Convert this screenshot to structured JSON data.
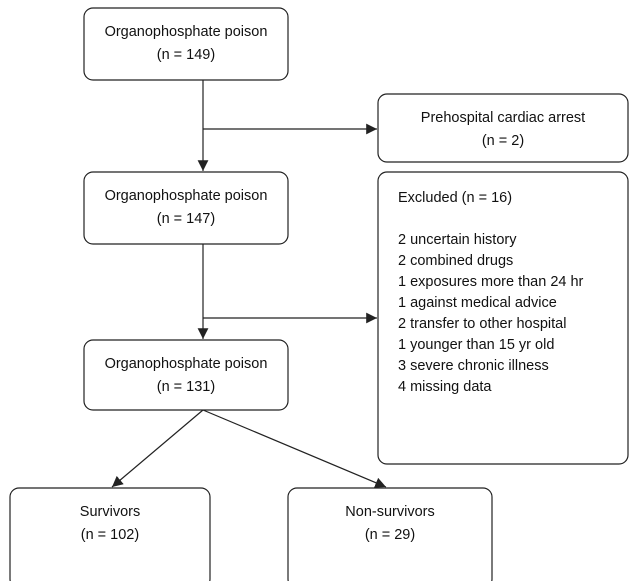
{
  "nodes": [
    {
      "lines": [
        "Organophosphate poison",
        "(n = 149)"
      ]
    },
    {
      "lines": [
        "Prehospital cardiac arrest",
        "(n = 2)"
      ]
    },
    {
      "lines": [
        "Organophosphate poison",
        "(n = 147)"
      ]
    },
    {
      "title": "Excluded (n = 16)",
      "lines": [
        "2 uncertain history",
        "2 combined drugs",
        "1 exposures more than 24 hr",
        "1 against medical advice",
        "2 transfer to other hospital",
        "1 younger than 15 yr old",
        "3 severe chronic illness",
        "4 missing data"
      ]
    },
    {
      "lines": [
        "Organophosphate poison",
        "(n = 131)"
      ]
    },
    {
      "lines": [
        "Survivors",
        "(n = 102)"
      ]
    },
    {
      "lines": [
        "Non-survivors",
        "(n = 29)"
      ]
    }
  ]
}
